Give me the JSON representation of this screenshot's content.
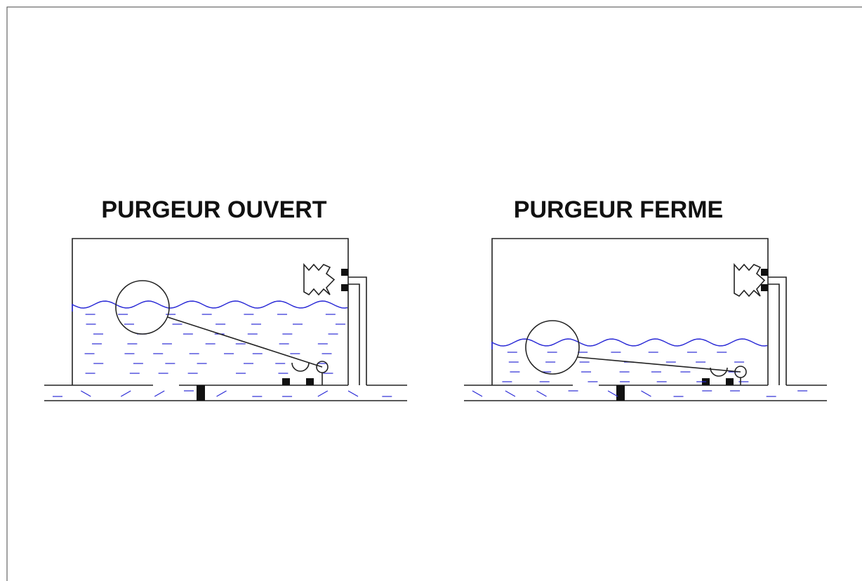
{
  "panels": [
    {
      "title": "PURGEUR OUVERT"
    },
    {
      "title": "PURGEUR FERME"
    }
  ]
}
